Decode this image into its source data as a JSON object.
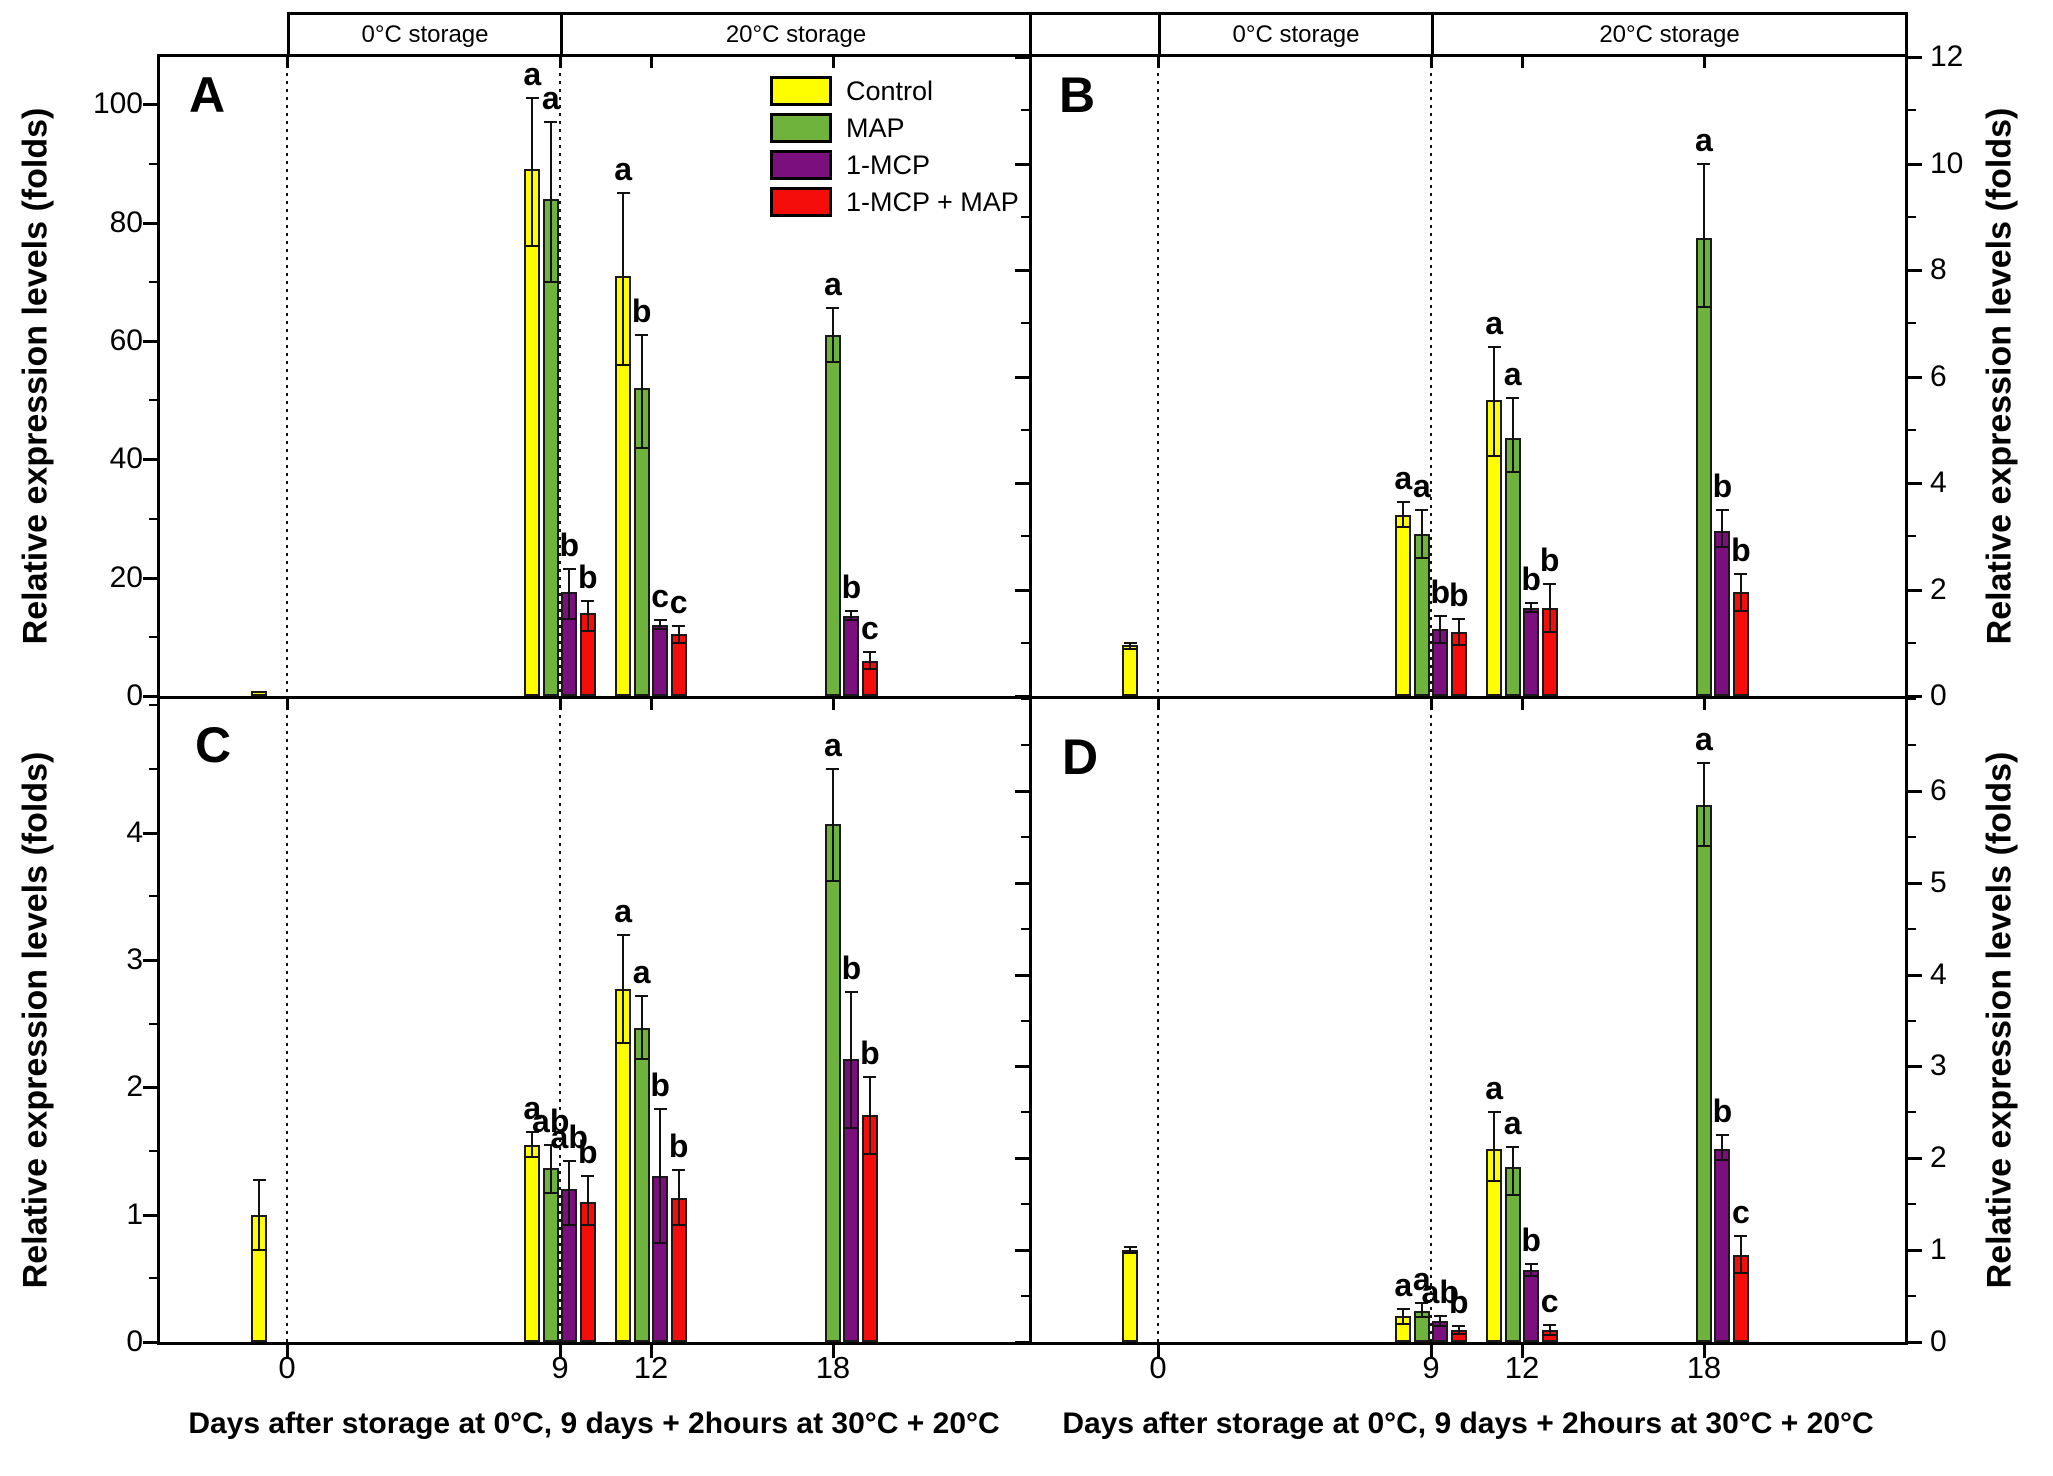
{
  "figure": {
    "axis_title": "Relative expression levels (folds)",
    "x_axis_title": "Days after storage at 0°C, 9 days + 2hours at 30°C + 20°C",
    "temperature_headers": [
      "0°C storage",
      "20°C storage"
    ]
  },
  "legend": {
    "items": [
      {
        "label": "Control",
        "color": "#fefe00"
      },
      {
        "label": "MAP",
        "color": "#6fb23c"
      },
      {
        "label": "1-MCP",
        "color": "#7b0f7d"
      },
      {
        "label": "1-MCP + MAP",
        "color": "#f50d0b"
      }
    ]
  },
  "chart_data": [
    {
      "panel_label": "A",
      "type": "bar",
      "axis_side": "left",
      "ylabel": "Relative expression levels (folds)",
      "xlabel": "Days after storage at 0°C, 9 days + 2hours at 30°C + 20°C",
      "ylim": [
        0,
        108
      ],
      "yticks": [
        0,
        20,
        40,
        60,
        80,
        100
      ],
      "minor_tick_step": 10,
      "x_days": [
        0,
        9,
        12,
        18
      ],
      "dotted_line_days": [
        0,
        9
      ],
      "groups": [
        {
          "day": 0,
          "bars": [
            {
              "series": "Control",
              "value": 0.8,
              "err": null,
              "letter": ""
            }
          ]
        },
        {
          "day": 9,
          "bars": [
            {
              "series": "Control",
              "value": 89,
              "err": [
                76,
                101
              ],
              "letter": "a"
            },
            {
              "series": "MAP",
              "value": 84,
              "err": [
                70,
                97
              ],
              "letter": "a"
            },
            {
              "series": "1-MCP",
              "value": 17.5,
              "err": [
                13,
                21.5
              ],
              "letter": "b"
            },
            {
              "series": "1-MCP + MAP",
              "value": 14,
              "err": [
                11,
                16
              ],
              "letter": "b"
            }
          ]
        },
        {
          "day": 12,
          "bars": [
            {
              "series": "Control",
              "value": 71,
              "err": [
                56,
                85
              ],
              "letter": "a"
            },
            {
              "series": "MAP",
              "value": 52,
              "err": [
                42,
                61
              ],
              "letter": "b"
            },
            {
              "series": "1-MCP",
              "value": 12,
              "err": [
                11.3,
                12.8
              ],
              "letter": "c"
            },
            {
              "series": "1-MCP + MAP",
              "value": 10.5,
              "err": [
                9,
                11.8
              ],
              "letter": "c"
            }
          ]
        },
        {
          "day": 18,
          "bars": [
            {
              "series": "MAP",
              "value": 61,
              "err": [
                56.5,
                65.5
              ],
              "letter": "a"
            },
            {
              "series": "1-MCP",
              "value": 13.5,
              "err": [
                12.8,
                14.3
              ],
              "letter": "b"
            },
            {
              "series": "1-MCP + MAP",
              "value": 6,
              "err": [
                4.5,
                7.5
              ],
              "letter": "c"
            }
          ]
        }
      ]
    },
    {
      "panel_label": "B",
      "type": "bar",
      "axis_side": "right",
      "ylabel": "Relative expression levels (folds)",
      "xlabel": "Days after storage at 0°C, 9 days + 2hours at 30°C + 20°C",
      "ylim": [
        0,
        12
      ],
      "yticks": [
        0,
        2,
        4,
        6,
        8,
        10,
        12
      ],
      "minor_tick_step": 1,
      "x_days": [
        0,
        9,
        12,
        18
      ],
      "dotted_line_days": [
        0,
        9
      ],
      "groups": [
        {
          "day": 0,
          "bars": [
            {
              "series": "Control",
              "value": 0.95,
              "err": [
                0.88,
                1.0
              ],
              "letter": ""
            }
          ]
        },
        {
          "day": 9,
          "bars": [
            {
              "series": "Control",
              "value": 3.4,
              "err": [
                3.17,
                3.64
              ],
              "letter": "a"
            },
            {
              "series": "MAP",
              "value": 3.05,
              "err": [
                2.6,
                3.5
              ],
              "letter": "a"
            },
            {
              "series": "1-MCP",
              "value": 1.25,
              "err": [
                1.0,
                1.5
              ],
              "letter": "b"
            },
            {
              "series": "1-MCP + MAP",
              "value": 1.2,
              "err": [
                0.95,
                1.45
              ],
              "letter": "b"
            }
          ]
        },
        {
          "day": 12,
          "bars": [
            {
              "series": "Control",
              "value": 5.55,
              "err": [
                4.5,
                6.55
              ],
              "letter": "a"
            },
            {
              "series": "MAP",
              "value": 4.85,
              "err": [
                4.2,
                5.6
              ],
              "letter": "a"
            },
            {
              "series": "1-MCP",
              "value": 1.65,
              "err": [
                1.58,
                1.75
              ],
              "letter": "b"
            },
            {
              "series": "1-MCP + MAP",
              "value": 1.65,
              "err": [
                1.2,
                2.1
              ],
              "letter": "b"
            }
          ]
        },
        {
          "day": 18,
          "bars": [
            {
              "series": "MAP",
              "value": 8.6,
              "err": [
                7.3,
                10.0
              ],
              "letter": "a"
            },
            {
              "series": "1-MCP",
              "value": 3.1,
              "err": [
                2.8,
                3.5
              ],
              "letter": "b"
            },
            {
              "series": "1-MCP + MAP",
              "value": 1.95,
              "err": [
                1.6,
                2.3
              ],
              "letter": "b"
            }
          ]
        }
      ]
    },
    {
      "panel_label": "C",
      "type": "bar",
      "axis_side": "left",
      "ylabel": "Relative expression levels (folds)",
      "xlabel": "Days after storage at 0°C, 9 days + 2hours at 30°C + 20°C",
      "ylim": [
        0,
        5.05
      ],
      "yticks": [
        0,
        1,
        2,
        3,
        4
      ],
      "minor_tick_step": 0.5,
      "x_days": [
        0,
        9,
        12,
        18
      ],
      "dotted_line_days": [
        0,
        9
      ],
      "groups": [
        {
          "day": 0,
          "bars": [
            {
              "series": "Control",
              "value": 1.0,
              "err": [
                0.72,
                1.27
              ],
              "letter": ""
            }
          ]
        },
        {
          "day": 9,
          "bars": [
            {
              "series": "Control",
              "value": 1.55,
              "err": [
                1.45,
                1.65
              ],
              "letter": "a"
            },
            {
              "series": "MAP",
              "value": 1.37,
              "err": [
                1.17,
                1.55
              ],
              "letter": "ab"
            },
            {
              "series": "1-MCP",
              "value": 1.2,
              "err": [
                0.92,
                1.42
              ],
              "letter": "ab"
            },
            {
              "series": "1-MCP + MAP",
              "value": 1.1,
              "err": [
                0.92,
                1.3
              ],
              "letter": "b"
            }
          ]
        },
        {
          "day": 12,
          "bars": [
            {
              "series": "Control",
              "value": 2.77,
              "err": [
                2.35,
                3.2
              ],
              "letter": "a"
            },
            {
              "series": "MAP",
              "value": 2.47,
              "err": [
                2.22,
                2.72
              ],
              "letter": "a"
            },
            {
              "series": "1-MCP",
              "value": 1.3,
              "err": [
                0.78,
                1.83
              ],
              "letter": "b"
            },
            {
              "series": "1-MCP + MAP",
              "value": 1.13,
              "err": [
                0.92,
                1.35
              ],
              "letter": "b"
            }
          ]
        },
        {
          "day": 18,
          "bars": [
            {
              "series": "MAP",
              "value": 4.07,
              "err": [
                3.62,
                4.5
              ],
              "letter": "a"
            },
            {
              "series": "1-MCP",
              "value": 2.22,
              "err": [
                1.68,
                2.75
              ],
              "letter": "b"
            },
            {
              "series": "1-MCP + MAP",
              "value": 1.78,
              "err": [
                1.48,
                2.08
              ],
              "letter": "b"
            }
          ]
        }
      ]
    },
    {
      "panel_label": "D",
      "type": "bar",
      "axis_side": "right",
      "ylabel": "Relative expression levels (folds)",
      "xlabel": "Days after storage at 0°C, 9 days + 2hours at 30°C + 20°C",
      "ylim": [
        0,
        7
      ],
      "yticks": [
        0,
        1,
        2,
        3,
        4,
        5,
        6
      ],
      "minor_tick_step": 0.5,
      "x_days": [
        0,
        9,
        12,
        18
      ],
      "dotted_line_days": [
        0,
        9
      ],
      "groups": [
        {
          "day": 0,
          "bars": [
            {
              "series": "Control",
              "value": 1.0,
              "err": [
                0.97,
                1.03
              ],
              "letter": ""
            }
          ]
        },
        {
          "day": 9,
          "bars": [
            {
              "series": "Control",
              "value": 0.28,
              "err": [
                0.2,
                0.36
              ],
              "letter": "a"
            },
            {
              "series": "MAP",
              "value": 0.34,
              "err": [
                0.27,
                0.42
              ],
              "letter": "a"
            },
            {
              "series": "1-MCP",
              "value": 0.23,
              "err": [
                0.17,
                0.28
              ],
              "letter": "ab"
            },
            {
              "series": "1-MCP + MAP",
              "value": 0.13,
              "err": [
                0.09,
                0.17
              ],
              "letter": "b"
            }
          ]
        },
        {
          "day": 12,
          "bars": [
            {
              "series": "Control",
              "value": 2.1,
              "err": [
                1.75,
                2.5
              ],
              "letter": "a"
            },
            {
              "series": "MAP",
              "value": 1.9,
              "err": [
                1.6,
                2.12
              ],
              "letter": "a"
            },
            {
              "series": "1-MCP",
              "value": 0.78,
              "err": [
                0.72,
                0.85
              ],
              "letter": "b"
            },
            {
              "series": "1-MCP + MAP",
              "value": 0.13,
              "err": [
                0.08,
                0.18
              ],
              "letter": "c"
            }
          ]
        },
        {
          "day": 18,
          "bars": [
            {
              "series": "MAP",
              "value": 5.85,
              "err": [
                5.4,
                6.3
              ],
              "letter": "a"
            },
            {
              "series": "1-MCP",
              "value": 2.1,
              "err": [
                1.98,
                2.25
              ],
              "letter": "b"
            },
            {
              "series": "1-MCP + MAP",
              "value": 0.95,
              "err": [
                0.75,
                1.15
              ],
              "letter": "c"
            }
          ]
        }
      ]
    }
  ]
}
